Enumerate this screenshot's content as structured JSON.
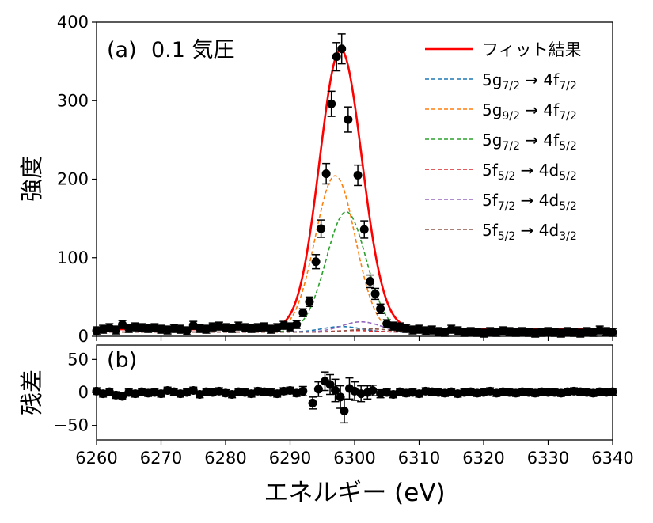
{
  "chart_data": [
    {
      "type": "scatter",
      "panel_label": "(a)",
      "condition": "0.1 気圧",
      "ylabel": "強度",
      "xlim": [
        6260,
        6340
      ],
      "ylim": [
        0,
        400
      ],
      "yticks": [
        "0",
        "100",
        "200",
        "300",
        "400"
      ],
      "legend_position": "top-right",
      "fit": {
        "name": "フィット結果",
        "color": "#ff0000",
        "baseline": 9,
        "components": [
          {
            "name": "5g7/2 → 4f7/2",
            "label": {
              "main": "5g",
              "sub": "7/2",
              "arrow": "→ 4f",
              "sub2": "7/2"
            },
            "color": "#1f77b4",
            "amplitude": 7,
            "center": 6298.0,
            "sigma": 3.0
          },
          {
            "name": "5g9/2 → 4f7/2",
            "label": {
              "main": "5g",
              "sub": "9/2",
              "arrow": "→ 4f",
              "sub2": "7/2"
            },
            "color": "#ff7f0e",
            "amplitude": 199,
            "center": 6297.0,
            "sigma": 3.1
          },
          {
            "name": "5g7/2 → 4f5/2",
            "label": {
              "main": "5g",
              "sub": "7/2",
              "arrow": "→ 4f",
              "sub2": "5/2"
            },
            "color": "#2ca02c",
            "amplitude": 153,
            "center": 6298.7,
            "sigma": 3.1
          },
          {
            "name": "5f5/2 → 4d5/2",
            "label": {
              "main": "5f",
              "sub": "5/2",
              "arrow": "→ 4d",
              "sub2": "5/2"
            },
            "color": "#d62728",
            "amplitude": 2,
            "center": 6300.0,
            "sigma": 3.0
          },
          {
            "name": "5f7/2 → 4d5/2",
            "label": {
              "main": "5f",
              "sub": "7/2",
              "arrow": "→ 4d",
              "sub2": "5/2"
            },
            "color": "#9467bd",
            "amplitude": 13,
            "center": 6301.0,
            "sigma": 3.0
          },
          {
            "name": "5f5/2 → 4d3/2",
            "label": {
              "main": "5f",
              "sub": "5/2",
              "arrow": "→ 4d",
              "sub2": "3/2"
            },
            "color": "#8c564b",
            "amplitude": 4,
            "center": 6302.5,
            "sigma": 3.0
          }
        ]
      },
      "points": [
        [
          6260.0,
          7,
          5
        ],
        [
          6261.0,
          9,
          5
        ],
        [
          6262.0,
          11,
          5
        ],
        [
          6263.0,
          8,
          5
        ],
        [
          6264.0,
          15,
          5
        ],
        [
          6265.0,
          10,
          5
        ],
        [
          6266.0,
          12,
          5
        ],
        [
          6267.0,
          11,
          5
        ],
        [
          6268.0,
          10,
          5
        ],
        [
          6269.0,
          11,
          5
        ],
        [
          6270.0,
          9,
          5
        ],
        [
          6271.0,
          8,
          5
        ],
        [
          6272.0,
          10,
          5
        ],
        [
          6273.0,
          9,
          5
        ],
        [
          6274.0,
          7,
          5
        ],
        [
          6275.0,
          14,
          5
        ],
        [
          6276.0,
          10,
          5
        ],
        [
          6277.0,
          9,
          5
        ],
        [
          6278.0,
          12,
          5
        ],
        [
          6279.0,
          13,
          5
        ],
        [
          6280.0,
          11,
          5
        ],
        [
          6281.0,
          10,
          5
        ],
        [
          6282.0,
          13,
          5
        ],
        [
          6283.0,
          11,
          5
        ],
        [
          6284.0,
          10,
          5
        ],
        [
          6285.0,
          11,
          5
        ],
        [
          6286.0,
          12,
          5
        ],
        [
          6287.0,
          9,
          5
        ],
        [
          6288.0,
          11,
          5
        ],
        [
          6289.0,
          14,
          5
        ],
        [
          6290.0,
          12,
          5
        ],
        [
          6291.0,
          15,
          5
        ],
        [
          6292.0,
          30,
          5
        ],
        [
          6293.0,
          44,
          6
        ],
        [
          6294.0,
          95,
          9
        ],
        [
          6294.8,
          137,
          11
        ],
        [
          6295.6,
          207,
          13
        ],
        [
          6296.4,
          296,
          16
        ],
        [
          6297.2,
          356,
          18
        ],
        [
          6298.0,
          366,
          19
        ],
        [
          6299.0,
          276,
          16
        ],
        [
          6300.5,
          205,
          13
        ],
        [
          6301.5,
          136,
          11
        ],
        [
          6302.4,
          70,
          8
        ],
        [
          6303.2,
          54,
          7
        ],
        [
          6304.0,
          35,
          6
        ],
        [
          6305.0,
          16,
          5
        ],
        [
          6306.0,
          13,
          5
        ],
        [
          6307.0,
          12,
          5
        ],
        [
          6308.0,
          10,
          5
        ],
        [
          6309.0,
          8,
          5
        ],
        [
          6310.0,
          9,
          5
        ],
        [
          6311.0,
          7,
          5
        ],
        [
          6312.0,
          8,
          5
        ],
        [
          6313.0,
          6,
          5
        ],
        [
          6314.0,
          5,
          5
        ],
        [
          6315.0,
          9,
          5
        ],
        [
          6316.0,
          7,
          5
        ],
        [
          6317.0,
          5,
          5
        ],
        [
          6318.0,
          6,
          5
        ],
        [
          6319.0,
          5,
          5
        ],
        [
          6320.0,
          4,
          5
        ],
        [
          6321.0,
          6,
          5
        ],
        [
          6322.0,
          5,
          5
        ],
        [
          6323.0,
          7,
          5
        ],
        [
          6324.0,
          6,
          5
        ],
        [
          6325.0,
          5,
          5
        ],
        [
          6326.0,
          6,
          5
        ],
        [
          6327.0,
          5,
          5
        ],
        [
          6328.0,
          4,
          5
        ],
        [
          6329.0,
          5,
          5
        ],
        [
          6330.0,
          6,
          5
        ],
        [
          6331.0,
          5,
          5
        ],
        [
          6332.0,
          4,
          5
        ],
        [
          6333.0,
          6,
          5
        ],
        [
          6334.0,
          5,
          5
        ],
        [
          6335.0,
          4,
          5
        ],
        [
          6336.0,
          6,
          5
        ],
        [
          6337.0,
          5,
          5
        ],
        [
          6338.0,
          8,
          5
        ],
        [
          6339.0,
          6,
          5
        ],
        [
          6340.0,
          5,
          5
        ]
      ]
    },
    {
      "type": "scatter",
      "panel_label": "(b)",
      "ylabel": "残差",
      "xlabel": "エネルギー (eV)",
      "xlim": [
        6260,
        6340
      ],
      "ylim": [
        -72,
        72
      ],
      "yticks": [
        "−50",
        "0",
        "50"
      ],
      "xticks": [
        "6260",
        "6270",
        "6280",
        "6290",
        "6300",
        "6310",
        "6320",
        "6330",
        "6340"
      ],
      "points": [
        [
          6260.0,
          2,
          5
        ],
        [
          6261.0,
          -2,
          5
        ],
        [
          6262.0,
          1,
          5
        ],
        [
          6263.0,
          -4,
          5
        ],
        [
          6264.0,
          -6,
          5
        ],
        [
          6265.0,
          0,
          5
        ],
        [
          6266.0,
          -2,
          5
        ],
        [
          6267.0,
          1,
          5
        ],
        [
          6268.0,
          -1,
          5
        ],
        [
          6269.0,
          0,
          5
        ],
        [
          6270.0,
          -2,
          5
        ],
        [
          6271.0,
          3,
          5
        ],
        [
          6272.0,
          1,
          5
        ],
        [
          6273.0,
          -2,
          5
        ],
        [
          6274.0,
          0,
          5
        ],
        [
          6275.0,
          3,
          5
        ],
        [
          6276.0,
          -3,
          5
        ],
        [
          6277.0,
          1,
          5
        ],
        [
          6278.0,
          0,
          5
        ],
        [
          6279.0,
          2,
          5
        ],
        [
          6280.0,
          -1,
          5
        ],
        [
          6281.0,
          -3,
          5
        ],
        [
          6282.0,
          1,
          5
        ],
        [
          6283.0,
          0,
          5
        ],
        [
          6284.0,
          -2,
          5
        ],
        [
          6285.0,
          2,
          5
        ],
        [
          6286.0,
          1,
          5
        ],
        [
          6287.0,
          0,
          5
        ],
        [
          6288.0,
          -2,
          5
        ],
        [
          6289.0,
          2,
          5
        ],
        [
          6290.0,
          3,
          5
        ],
        [
          6291.0,
          -1,
          5
        ],
        [
          6292.0,
          2,
          7
        ],
        [
          6293.5,
          -16,
          9
        ],
        [
          6294.4,
          5,
          11
        ],
        [
          6295.4,
          17,
          14
        ],
        [
          6296.2,
          12,
          15
        ],
        [
          6297.0,
          3,
          17
        ],
        [
          6297.8,
          -7,
          17
        ],
        [
          6298.4,
          -28,
          18
        ],
        [
          6299.2,
          6,
          16
        ],
        [
          6300.0,
          2,
          14
        ],
        [
          6301.0,
          -2,
          12
        ],
        [
          6302.0,
          0,
          10
        ],
        [
          6302.8,
          3,
          8
        ],
        [
          6304.0,
          -2,
          6
        ],
        [
          6305.0,
          0,
          5
        ],
        [
          6306.0,
          -3,
          5
        ],
        [
          6307.0,
          1,
          5
        ],
        [
          6308.0,
          -1,
          5
        ],
        [
          6309.0,
          0,
          5
        ],
        [
          6310.0,
          -2,
          5
        ],
        [
          6311.0,
          2,
          5
        ],
        [
          6312.0,
          1,
          5
        ],
        [
          6313.0,
          0,
          5
        ],
        [
          6314.0,
          -1,
          5
        ],
        [
          6315.0,
          1,
          5
        ],
        [
          6316.0,
          -2,
          5
        ],
        [
          6317.0,
          0,
          5
        ],
        [
          6318.0,
          1,
          5
        ],
        [
          6319.0,
          -1,
          5
        ],
        [
          6320.0,
          0,
          5
        ],
        [
          6321.0,
          2,
          5
        ],
        [
          6322.0,
          -1,
          5
        ],
        [
          6323.0,
          1,
          5
        ],
        [
          6324.0,
          0,
          5
        ],
        [
          6325.0,
          -1,
          5
        ],
        [
          6326.0,
          1,
          5
        ],
        [
          6327.0,
          0,
          5
        ],
        [
          6328.0,
          -1,
          5
        ],
        [
          6329.0,
          1,
          5
        ],
        [
          6330.0,
          0,
          5
        ],
        [
          6331.0,
          0,
          5
        ],
        [
          6332.0,
          -1,
          5
        ],
        [
          6333.0,
          1,
          5
        ],
        [
          6334.0,
          2,
          5
        ],
        [
          6335.0,
          1,
          5
        ],
        [
          6336.0,
          0,
          5
        ],
        [
          6337.0,
          -1,
          5
        ],
        [
          6338.0,
          1,
          5
        ],
        [
          6339.0,
          0,
          5
        ],
        [
          6340.0,
          1,
          5
        ]
      ]
    }
  ]
}
